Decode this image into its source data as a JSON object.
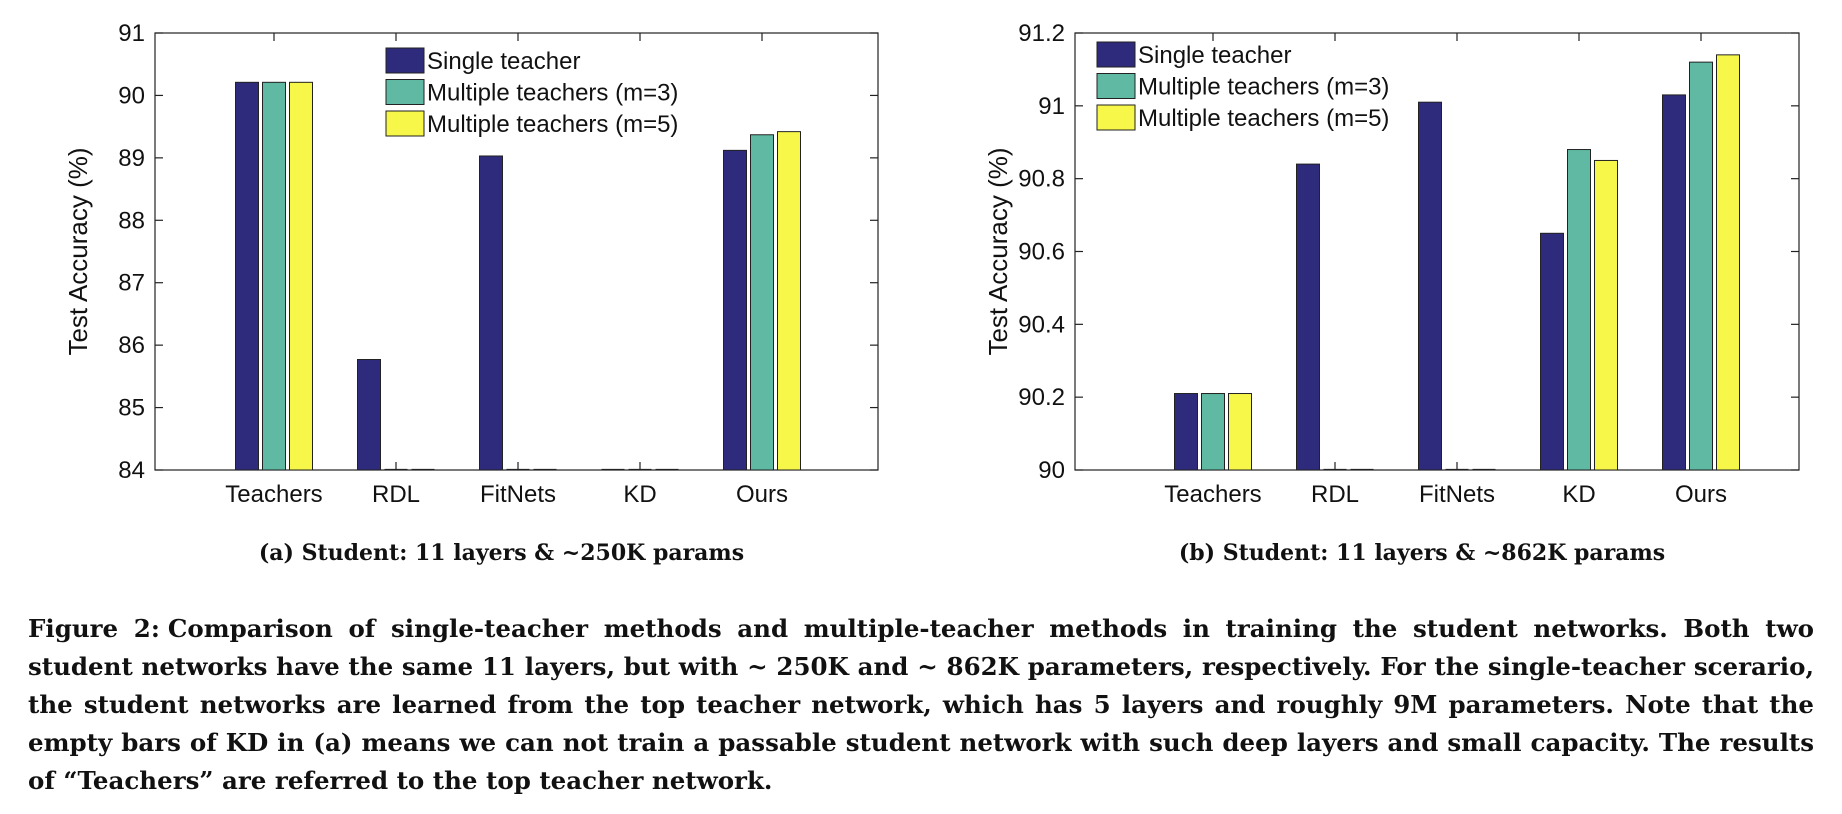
{
  "chart_data": [
    {
      "type": "bar",
      "categories": [
        "Teachers",
        "RDL",
        "FitNets",
        "KD",
        "Ours"
      ],
      "series": [
        {
          "name": "Single teacher",
          "color": "#2e2a7c",
          "values": [
            90.21,
            85.77,
            89.03,
            null,
            89.12
          ]
        },
        {
          "name": "Multiple teachers (m=3)",
          "color": "#5fb9a3",
          "values": [
            90.21,
            null,
            null,
            null,
            89.37
          ]
        },
        {
          "name": "Multiple teachers (m=5)",
          "color": "#f7f74a",
          "values": [
            90.21,
            null,
            null,
            null,
            89.42
          ]
        }
      ],
      "ylabel": "Test Accuracy (%)",
      "ylim": [
        84,
        91
      ],
      "yticks": [
        "84",
        "85",
        "86",
        "87",
        "88",
        "89",
        "90",
        "91"
      ],
      "legend": "top-center",
      "caption": "(a) Student: 11 layers & ~250K params"
    },
    {
      "type": "bar",
      "categories": [
        "Teachers",
        "RDL",
        "FitNets",
        "KD",
        "Ours"
      ],
      "series": [
        {
          "name": "Single teacher",
          "color": "#2e2a7c",
          "values": [
            90.21,
            90.84,
            91.01,
            90.65,
            91.03
          ]
        },
        {
          "name": "Multiple teachers (m=3)",
          "color": "#5fb9a3",
          "values": [
            90.21,
            null,
            null,
            90.88,
            91.12
          ]
        },
        {
          "name": "Multiple teachers (m=5)",
          "color": "#f7f74a",
          "values": [
            90.21,
            null,
            null,
            90.85,
            91.14
          ]
        }
      ],
      "ylabel": "Test Accuracy (%)",
      "ylim": [
        90,
        91.2
      ],
      "yticks": [
        "90",
        "90.2",
        "90.4",
        "90.6",
        "90.8",
        "91",
        "91.2"
      ],
      "legend": "top-left",
      "caption": "(b) Student: 11 layers & ~862K params"
    }
  ],
  "figure_caption": {
    "label": "Figure 2:",
    "text": "Comparison of single-teacher methods and multiple-teacher methods in training the student networks. Both two student networks have the same 11 layers, but with ~ 250K and ~ 862K parameters, respectively. For the single-teacher scerario, the student networks are learned from the top teacher network, which has 5 layers and roughly 9M parameters. Note that the empty bars of KD in (a) means we can not train a passable student network with such deep layers and small capacity. The results of “Teachers” are referred to the top teacher network."
  }
}
